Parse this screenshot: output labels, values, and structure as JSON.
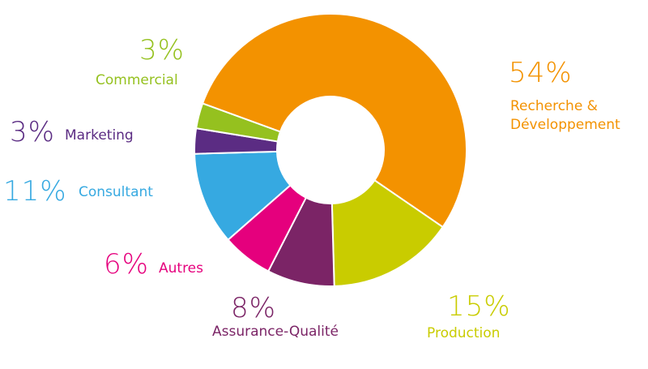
{
  "chart_data": {
    "type": "donut",
    "categories": [
      "Recherche & Développement",
      "Production",
      "Assurance-Qualité",
      "Autres",
      "Consultant",
      "Marketing",
      "Commercial"
    ],
    "values": [
      54,
      15,
      8,
      6,
      11,
      3,
      3
    ],
    "value_labels": [
      "54%",
      "15%",
      "8%",
      "6%",
      "11%",
      "3%",
      "3%"
    ],
    "colors": [
      "#f39200",
      "#c9cc00",
      "#7b2466",
      "#e5007d",
      "#36a9e1",
      "#5b2c83",
      "#95c11f"
    ]
  }
}
